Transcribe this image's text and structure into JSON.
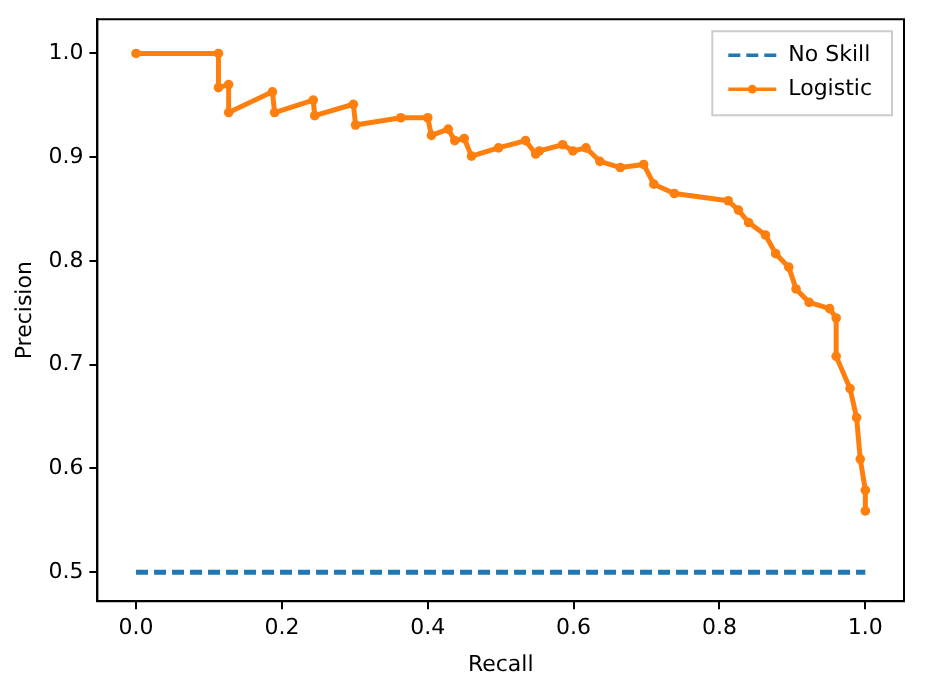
{
  "chart_data": {
    "type": "line",
    "xlabel": "Recall",
    "ylabel": "Precision",
    "xlim": [
      -0.053,
      1.053
    ],
    "ylim": [
      0.472,
      1.033
    ],
    "xticks": [
      {
        "value": 0,
        "label": "0.0"
      },
      {
        "value": 0.2,
        "label": "0.2"
      },
      {
        "value": 0.4,
        "label": "0.4"
      },
      {
        "value": 0.6,
        "label": "0.6"
      },
      {
        "value": 0.8,
        "label": "0.8"
      },
      {
        "value": 1,
        "label": "1.0"
      }
    ],
    "yticks": [
      {
        "value": 0.5,
        "label": "0.5"
      },
      {
        "value": 0.6,
        "label": "0.6"
      },
      {
        "value": 0.7,
        "label": "0.7"
      },
      {
        "value": 0.8,
        "label": "0.8"
      },
      {
        "value": 0.9,
        "label": "0.9"
      },
      {
        "value": 1,
        "label": "1.0"
      }
    ],
    "legend": "top right",
    "grid": false,
    "series": [
      {
        "name": "No Skill",
        "color": "#1f77b4",
        "line_style": "dashed",
        "marker": "none",
        "x": [
          0,
          1
        ],
        "values": [
          0.5,
          0.5
        ]
      },
      {
        "name": "Logistic",
        "color": "#ff7f0e",
        "line_style": "solid",
        "marker": "circle",
        "x": [
          0,
          0.113,
          0.113,
          0.127,
          0.127,
          0.187,
          0.19,
          0.243,
          0.245,
          0.298,
          0.301,
          0.363,
          0.4,
          0.405,
          0.428,
          0.437,
          0.45,
          0.46,
          0.497,
          0.534,
          0.548,
          0.553,
          0.585,
          0.599,
          0.617,
          0.636,
          0.664,
          0.696,
          0.71,
          0.738,
          0.812,
          0.826,
          0.84,
          0.863,
          0.877,
          0.895,
          0.905,
          0.923,
          0.951,
          0.96,
          0.96,
          0.979,
          0.988,
          0.993,
          1,
          1
        ],
        "values": [
          1,
          1,
          0.967,
          0.97,
          0.943,
          0.963,
          0.943,
          0.955,
          0.94,
          0.951,
          0.931,
          0.938,
          0.938,
          0.921,
          0.927,
          0.916,
          0.918,
          0.901,
          0.909,
          0.916,
          0.903,
          0.906,
          0.912,
          0.906,
          0.909,
          0.896,
          0.89,
          0.893,
          0.874,
          0.865,
          0.858,
          0.849,
          0.837,
          0.825,
          0.807,
          0.794,
          0.773,
          0.76,
          0.754,
          0.745,
          0.708,
          0.677,
          0.649,
          0.609,
          0.579,
          0.559
        ]
      }
    ]
  }
}
